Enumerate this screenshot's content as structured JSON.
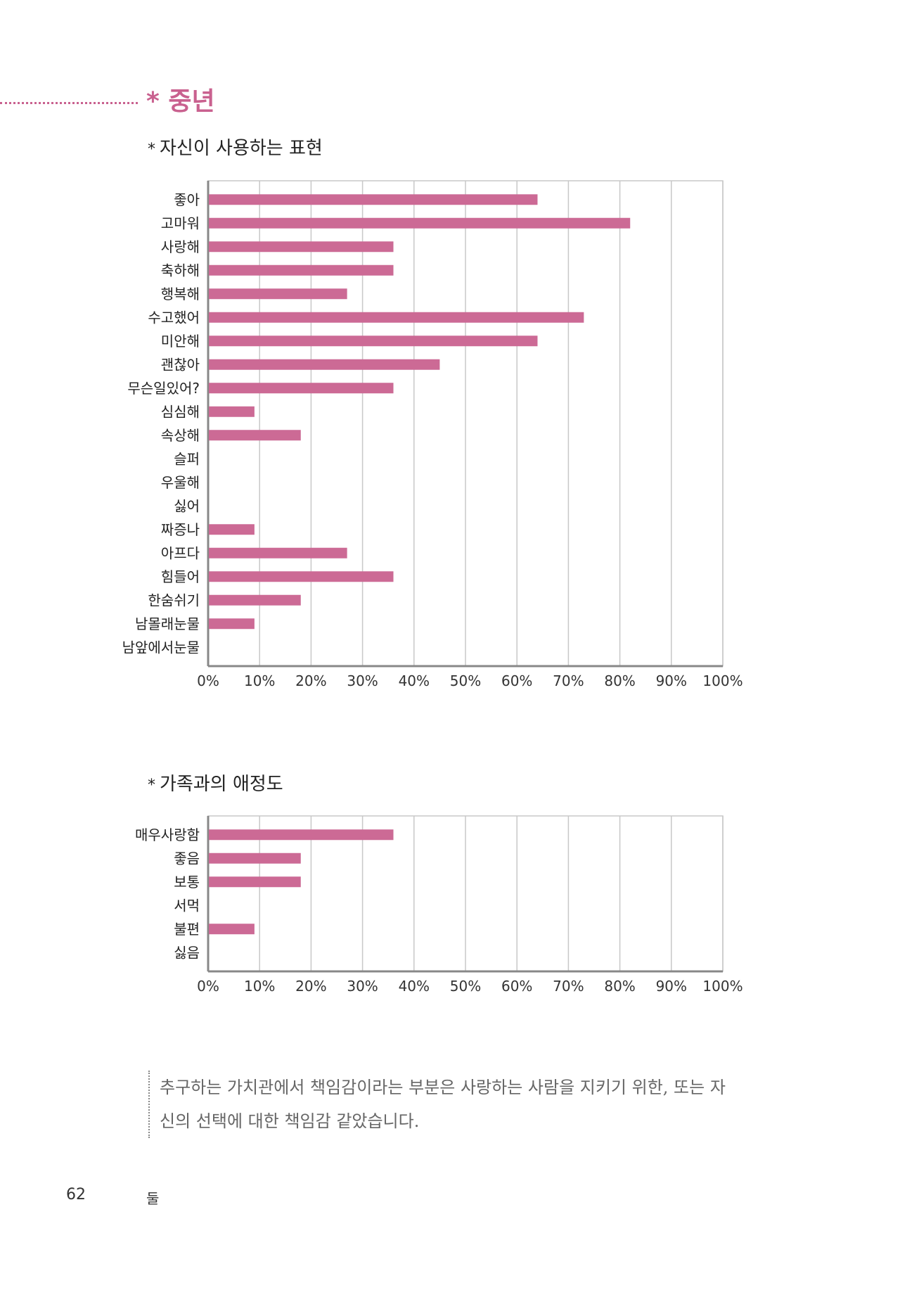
{
  "section": {
    "title": "* 중년"
  },
  "quote": {
    "text": "추구하는 가치관에서 책임감이라는 부분은 사랑하는 사람을 지키기 위한, 또는 자신의 선택에 대한 책임감 같았습니다."
  },
  "footer": {
    "page_number": "62",
    "running_head": "둘"
  },
  "colors": {
    "bar": "#cc6a95",
    "grid": "#c8c8c8",
    "axis": "#888888",
    "accent": "#c9618f"
  },
  "chart_data": [
    {
      "type": "bar",
      "orientation": "horizontal",
      "title": "자신이 사용하는 표현",
      "title_marker": "*",
      "categories": [
        "좋아",
        "고마워",
        "사랑해",
        "축하해",
        "행복해",
        "수고했어",
        "미안해",
        "괜찮아",
        "무슨일있어?",
        "심심해",
        "속상해",
        "슬퍼",
        "우울해",
        "싫어",
        "짜증나",
        "아프다",
        "힘들어",
        "한숨쉬기",
        "남몰래눈물",
        "남앞에서눈물"
      ],
      "values": [
        64,
        82,
        36,
        36,
        27,
        73,
        64,
        45,
        36,
        9,
        18,
        0,
        0,
        0,
        9,
        27,
        36,
        18,
        9,
        0
      ],
      "xlim": [
        0,
        100
      ],
      "xticks": [
        "0%",
        "10%",
        "20%",
        "30%",
        "40%",
        "50%",
        "60%",
        "70%",
        "80%",
        "90%",
        "100%"
      ],
      "grid": true,
      "legend": "none"
    },
    {
      "type": "bar",
      "orientation": "horizontal",
      "title": "가족과의 애정도",
      "title_marker": "*",
      "categories": [
        "매우사랑함",
        "좋음",
        "보통",
        "서먹",
        "불편",
        "싫음"
      ],
      "values": [
        36,
        18,
        18,
        0,
        9,
        0
      ],
      "xlim": [
        0,
        100
      ],
      "xticks": [
        "0%",
        "10%",
        "20%",
        "30%",
        "40%",
        "50%",
        "60%",
        "70%",
        "80%",
        "90%",
        "100%"
      ],
      "grid": true,
      "legend": "none"
    }
  ]
}
